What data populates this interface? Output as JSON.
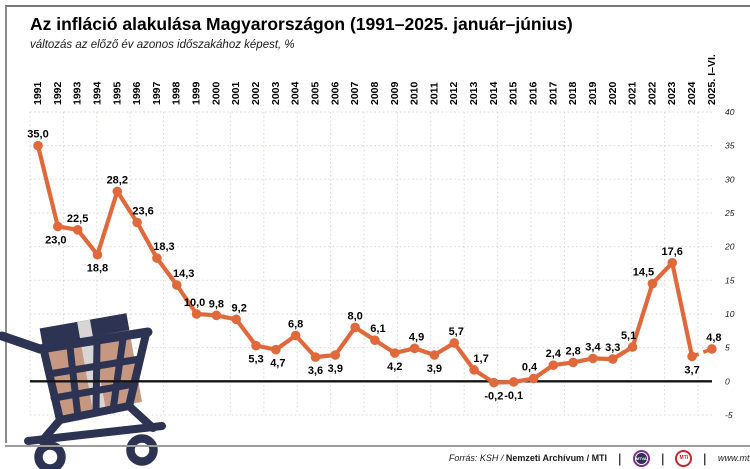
{
  "header": {
    "title": "Az infláció alakulása Magyarországon (1991–2025. január–június)",
    "subtitle": "változás az előző év azonos időszakához képest, %"
  },
  "chart_data": {
    "type": "line",
    "title": "Az infláció alakulása Magyarországon (1991–2025. január–június)",
    "subtitle_ylabel": "változás az előző év azonos időszakához képest, %",
    "categories": [
      "1991",
      "1992",
      "1993",
      "1994",
      "1995",
      "1996",
      "1997",
      "1998",
      "1999",
      "2000",
      "2001",
      "2002",
      "2003",
      "2004",
      "2005",
      "2006",
      "2007",
      "2008",
      "2009",
      "2010",
      "2011",
      "2012",
      "2013",
      "2014",
      "2015",
      "2016",
      "2017",
      "2018",
      "2019",
      "2020",
      "2021",
      "2022",
      "2023",
      "2024",
      "2025. I–VI."
    ],
    "values": [
      35.0,
      23.0,
      22.5,
      18.8,
      28.2,
      23.6,
      18.3,
      14.3,
      10.0,
      9.8,
      9.2,
      5.3,
      4.7,
      6.8,
      3.6,
      3.9,
      8.0,
      6.1,
      4.2,
      4.9,
      3.9,
      5.7,
      1.7,
      -0.2,
      -0.1,
      0.4,
      2.4,
      2.8,
      3.4,
      3.3,
      5.1,
      14.5,
      17.6,
      3.7,
      4.8
    ],
    "point_labels": [
      "35,0",
      "23,0",
      "22,5",
      "18,8",
      "28,2",
      "23,6",
      "18,3",
      "14,3",
      "10,0",
      "9,8",
      "9,2",
      "5,3",
      "4,7",
      "6,8",
      "3,6",
      "3,9",
      "8,0",
      "6,1",
      "4,2",
      "4,9",
      "3,9",
      "5,7",
      "1,7",
      "-0,2",
      "-0,1",
      "0,4",
      "2,4",
      "2,8",
      "3,4",
      "3,3",
      "5,1",
      "14,5",
      "17,6",
      "3,7",
      "4,8"
    ],
    "label_positions": [
      "above",
      "below",
      "above",
      "below",
      "above",
      "above",
      "above",
      "above",
      "above",
      "above",
      "above",
      "below",
      "below",
      "above",
      "below",
      "below",
      "above",
      "above",
      "below",
      "above",
      "below",
      "above",
      "above",
      "below",
      "below",
      "above",
      "above",
      "above",
      "above",
      "above",
      "above",
      "above",
      "above",
      "below",
      "above"
    ],
    "label_dx": [
      0,
      -2,
      0,
      0,
      0,
      6,
      7,
      7,
      -2,
      0,
      3,
      0,
      2,
      0,
      0,
      0,
      0,
      3,
      0,
      2,
      0,
      2,
      7,
      0,
      0,
      -4,
      0,
      0,
      0,
      0,
      -4,
      -9,
      0,
      0,
      2
    ],
    "yticks": [
      "40",
      "35",
      "30",
      "25",
      "20",
      "15",
      "10",
      "5",
      "0",
      "-5"
    ],
    "ylim": [
      -5,
      40
    ],
    "grid": "dotted",
    "legend": "none",
    "line_color": "#E0693C",
    "zero_line": true,
    "last_segment_dashed": true
  },
  "footer": {
    "source_italic": "Forrás: KSH /",
    "source_bold": "Nemzeti Archívum / MTI",
    "divider": "|",
    "logo_mtva": "MTVA",
    "logo_mti": "MTI",
    "website": "www.mti.hu"
  },
  "illustration": {
    "name": "shopping cart with parcel box",
    "cart_color": "#2d3352",
    "box_color": "#c69781",
    "tape_color": "#d8d6d4"
  }
}
